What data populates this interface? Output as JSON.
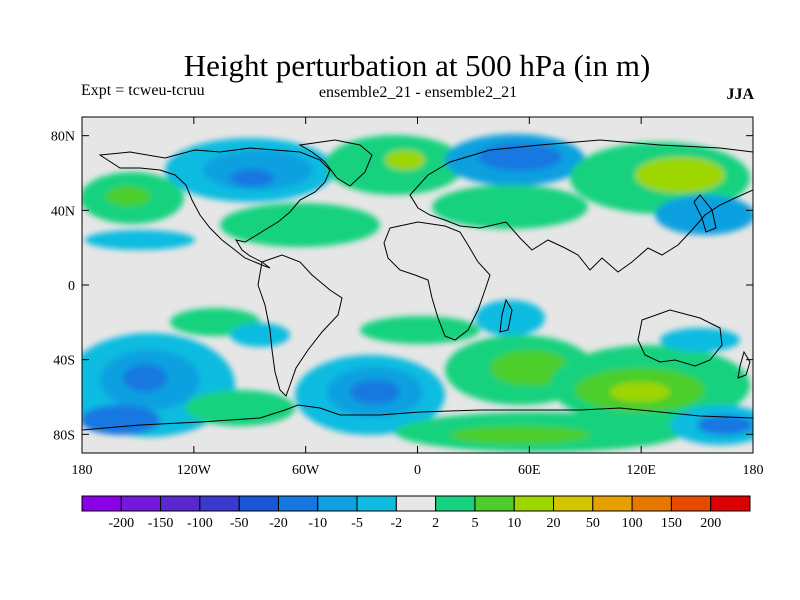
{
  "title": "Height perturbation at 500 hPa (in m)",
  "subtitle_left": "Expt = tcweu-tcruu",
  "subtitle_center": "ensemble2_21 - ensemble2_21",
  "season": "JJA",
  "lat_ticks": [
    "80N",
    "40N",
    "0",
    "40S",
    "80S"
  ],
  "lon_ticks": [
    "180",
    "120W",
    "60W",
    "0",
    "60E",
    "120E",
    "180"
  ],
  "colorbar": {
    "labels": [
      "-200",
      "-150",
      "-100",
      "-50",
      "-20",
      "-10",
      "-5",
      "-2",
      "2",
      "5",
      "10",
      "20",
      "50",
      "100",
      "150",
      "200"
    ],
    "colors": [
      "#8a00e8",
      "#7318dc",
      "#5a28d0",
      "#3a3ad0",
      "#1858d8",
      "#1478e0",
      "#0fa0e0",
      "#10bce0",
      "#e6e6e6",
      "#16d27e",
      "#4ccd2a",
      "#9ed600",
      "#d2c600",
      "#e6a000",
      "#e67800",
      "#e64a00",
      "#dc0000"
    ],
    "neutral_color": "#e6e6e6"
  }
}
